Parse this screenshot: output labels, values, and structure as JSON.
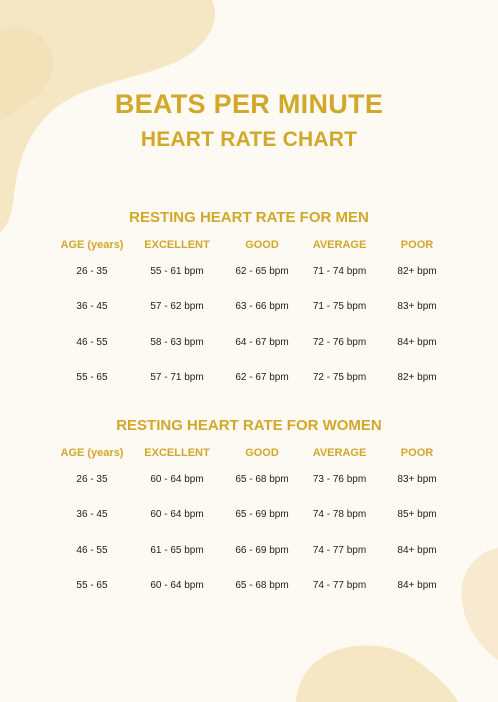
{
  "colors": {
    "accent": "#d1a82a",
    "background": "#fdf9f3",
    "blob": "#f5e6c4",
    "text": "#222222"
  },
  "header": {
    "title": "BEATS PER MINUTE",
    "subtitle": "HEART RATE CHART"
  },
  "columns": [
    "AGE (years)",
    "EXCELLENT",
    "GOOD",
    "AVERAGE",
    "POOR"
  ],
  "men": {
    "title": "RESTING HEART RATE FOR MEN",
    "rows": [
      [
        "26 - 35",
        "55 - 61 bpm",
        "62 - 65 bpm",
        "71 - 74 bpm",
        "82+ bpm"
      ],
      [
        "36 - 45",
        "57 - 62 bpm",
        "63 - 66 bpm",
        "71 - 75 bpm",
        "83+ bpm"
      ],
      [
        "46 - 55",
        "58 - 63 bpm",
        "64 - 67 bpm",
        "72 - 76 bpm",
        "84+ bpm"
      ],
      [
        "55 - 65",
        "57 - 71 bpm",
        "62 - 67 bpm",
        "72 - 75 bpm",
        "82+ bpm"
      ]
    ]
  },
  "women": {
    "title": "RESTING HEART RATE FOR WOMEN",
    "rows": [
      [
        "26 - 35",
        "60 - 64 bpm",
        "65 - 68 bpm",
        "73 - 76 bpm",
        "83+ bpm"
      ],
      [
        "36 - 45",
        "60 - 64 bpm",
        "65 - 69 bpm",
        "74 - 78 bpm",
        "85+ bpm"
      ],
      [
        "46 - 55",
        "61 - 65 bpm",
        "66 - 69 bpm",
        "74 - 77 bpm",
        "84+ bpm"
      ],
      [
        "55 - 65",
        "60 - 64 bpm",
        "65 - 68 bpm",
        "74 - 77 bpm",
        "84+ bpm"
      ]
    ]
  }
}
